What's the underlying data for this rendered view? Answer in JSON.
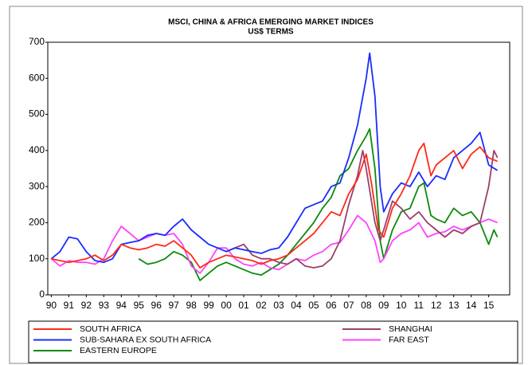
{
  "chart_data": {
    "type": "line",
    "title": "MSCI, CHINA & AFRICA EMERGING MARKET INDICES",
    "subtitle": "US$ TERMS",
    "xlim": [
      1989.8,
      2016.2
    ],
    "ylim": [
      0,
      700
    ],
    "yticks": [
      0,
      100,
      200,
      300,
      400,
      500,
      600,
      700
    ],
    "xticks": [
      {
        "value": 1990,
        "label": "90"
      },
      {
        "value": 1991,
        "label": "91"
      },
      {
        "value": 1992,
        "label": "92"
      },
      {
        "value": 1993,
        "label": "93"
      },
      {
        "value": 1994,
        "label": "94"
      },
      {
        "value": 1995,
        "label": "95"
      },
      {
        "value": 1996,
        "label": "96"
      },
      {
        "value": 1997,
        "label": "97"
      },
      {
        "value": 1998,
        "label": "98"
      },
      {
        "value": 1999,
        "label": "99"
      },
      {
        "value": 2000,
        "label": "00"
      },
      {
        "value": 2001,
        "label": "01"
      },
      {
        "value": 2002,
        "label": "02"
      },
      {
        "value": 2003,
        "label": "03"
      },
      {
        "value": 2004,
        "label": "04"
      },
      {
        "value": 2005,
        "label": "05"
      },
      {
        "value": 2006,
        "label": "06"
      },
      {
        "value": 2007,
        "label": "07"
      },
      {
        "value": 2008,
        "label": "08"
      },
      {
        "value": 2009,
        "label": "09"
      },
      {
        "value": 2010,
        "label": "10"
      },
      {
        "value": 2011,
        "label": "11"
      },
      {
        "value": 2012,
        "label": "12"
      },
      {
        "value": 2013,
        "label": "13"
      },
      {
        "value": 2014,
        "label": "14"
      },
      {
        "value": 2015,
        "label": "15"
      }
    ],
    "series": [
      {
        "name": "SOUTH AFRICA",
        "color": "#ff2a1a",
        "x": [
          1990,
          1990.5,
          1991,
          1992,
          1992.5,
          1993,
          1993.5,
          1994,
          1994.5,
          1995,
          1995.5,
          1996,
          1996.5,
          1997,
          1997.5,
          1998,
          1998.5,
          1999,
          1999.5,
          2000,
          2000.5,
          2001,
          2001.5,
          2002,
          2002.5,
          2003,
          2003.5,
          2004,
          2004.5,
          2005,
          2005.5,
          2006,
          2006.5,
          2007,
          2007.5,
          2008,
          2008.3,
          2008.7,
          2009,
          2009.5,
          2010,
          2010.5,
          2011,
          2011.3,
          2011.7,
          2012,
          2012.5,
          2013,
          2013.5,
          2014,
          2014.5,
          2015,
          2015.5
        ],
        "values": [
          100,
          95,
          90,
          100,
          110,
          95,
          110,
          140,
          130,
          125,
          130,
          140,
          135,
          150,
          130,
          110,
          75,
          90,
          100,
          110,
          105,
          100,
          95,
          85,
          95,
          100,
          110,
          130,
          150,
          170,
          200,
          230,
          220,
          280,
          320,
          390,
          310,
          180,
          160,
          240,
          280,
          330,
          400,
          420,
          330,
          360,
          380,
          400,
          350,
          390,
          410,
          380,
          370
        ]
      },
      {
        "name": "SHANGHAI",
        "color": "#9b3f6b",
        "x": [
          2000,
          2001,
          2001.5,
          2002,
          2002.5,
          2003,
          2003.5,
          2004,
          2004.5,
          2005,
          2005.5,
          2006,
          2006.5,
          2007,
          2007.5,
          2007.8,
          2008,
          2008.5,
          2008.8,
          2009,
          2009.5,
          2010,
          2010.5,
          2011,
          2011.5,
          2012,
          2012.5,
          2013,
          2013.5,
          2014,
          2014.5,
          2015,
          2015.3,
          2015.5
        ],
        "values": [
          120,
          140,
          110,
          100,
          100,
          90,
          85,
          100,
          80,
          75,
          80,
          100,
          150,
          250,
          330,
          400,
          350,
          200,
          150,
          180,
          260,
          240,
          210,
          230,
          200,
          180,
          160,
          180,
          170,
          190,
          200,
          300,
          400,
          380
        ]
      },
      {
        "name": "SUB-SAHARA EX SOUTH AFRICA",
        "color": "#1a2cff",
        "x": [
          1990,
          1990.5,
          1991,
          1991.5,
          1992,
          1992.5,
          1993,
          1993.5,
          1994,
          1994.5,
          1995,
          1995.5,
          1996,
          1996.5,
          1997,
          1997.5,
          1998,
          1998.5,
          1999,
          1999.5,
          2000,
          2000.5,
          2001,
          2001.5,
          2002,
          2002.5,
          2003,
          2003.5,
          2004,
          2004.5,
          2005,
          2005.5,
          2006,
          2006.5,
          2007,
          2007.5,
          2008,
          2008.2,
          2008.5,
          2008.8,
          2009,
          2009.5,
          2010,
          2010.5,
          2011,
          2011.5,
          2012,
          2012.5,
          2013,
          2013.5,
          2014,
          2014.5,
          2015,
          2015.5
        ],
        "values": [
          100,
          120,
          160,
          155,
          120,
          95,
          90,
          100,
          140,
          145,
          150,
          165,
          170,
          165,
          190,
          210,
          180,
          160,
          140,
          130,
          120,
          130,
          125,
          120,
          115,
          125,
          130,
          160,
          200,
          240,
          250,
          260,
          300,
          310,
          380,
          470,
          600,
          670,
          550,
          300,
          230,
          280,
          310,
          300,
          340,
          300,
          330,
          320,
          380,
          400,
          420,
          450,
          360,
          345
        ]
      },
      {
        "name": "FAR EAST",
        "color": "#ff44ff",
        "x": [
          1990,
          1990.5,
          1991,
          1991.5,
          1992,
          1992.5,
          1993,
          1993.5,
          1994,
          1994.5,
          1995,
          1995.5,
          1996,
          1996.5,
          1997,
          1997.5,
          1998,
          1998.5,
          1999,
          1999.5,
          2000,
          2000.5,
          2001,
          2001.5,
          2002,
          2002.5,
          2003,
          2003.5,
          2004,
          2004.5,
          2005,
          2005.5,
          2006,
          2006.5,
          2007,
          2007.5,
          2008,
          2008.5,
          2008.8,
          2009,
          2009.5,
          2010,
          2010.5,
          2011,
          2011.5,
          2012,
          2012.5,
          2013,
          2013.5,
          2014,
          2014.5,
          2015,
          2015.5
        ],
        "values": [
          100,
          80,
          95,
          90,
          90,
          85,
          100,
          150,
          190,
          170,
          150,
          160,
          170,
          165,
          170,
          140,
          80,
          60,
          90,
          130,
          130,
          100,
          85,
          80,
          90,
          75,
          70,
          85,
          100,
          95,
          110,
          120,
          140,
          145,
          180,
          220,
          200,
          150,
          90,
          100,
          150,
          170,
          180,
          200,
          160,
          170,
          175,
          190,
          180,
          190,
          200,
          210,
          200
        ]
      },
      {
        "name": "EASTERN EUROPE",
        "color": "#0c8a0c",
        "x": [
          1995,
          1995.5,
          1996,
          1996.5,
          1997,
          1997.5,
          1998,
          1998.5,
          1999,
          1999.5,
          2000,
          2000.5,
          2001,
          2001.5,
          2002,
          2002.5,
          2003,
          2003.5,
          2004,
          2004.5,
          2005,
          2005.5,
          2006,
          2006.5,
          2007,
          2007.5,
          2008,
          2008.2,
          2008.5,
          2008.8,
          2009,
          2009.5,
          2010,
          2010.5,
          2011,
          2011.3,
          2011.7,
          2012,
          2012.5,
          2013,
          2013.5,
          2014,
          2014.5,
          2015,
          2015.3,
          2015.5
        ],
        "values": [
          100,
          85,
          90,
          100,
          120,
          110,
          90,
          40,
          60,
          80,
          90,
          80,
          70,
          60,
          55,
          70,
          85,
          110,
          140,
          170,
          200,
          240,
          270,
          330,
          350,
          400,
          440,
          460,
          350,
          150,
          100,
          180,
          230,
          240,
          300,
          310,
          220,
          210,
          200,
          240,
          220,
          230,
          200,
          140,
          180,
          160
        ]
      }
    ]
  }
}
